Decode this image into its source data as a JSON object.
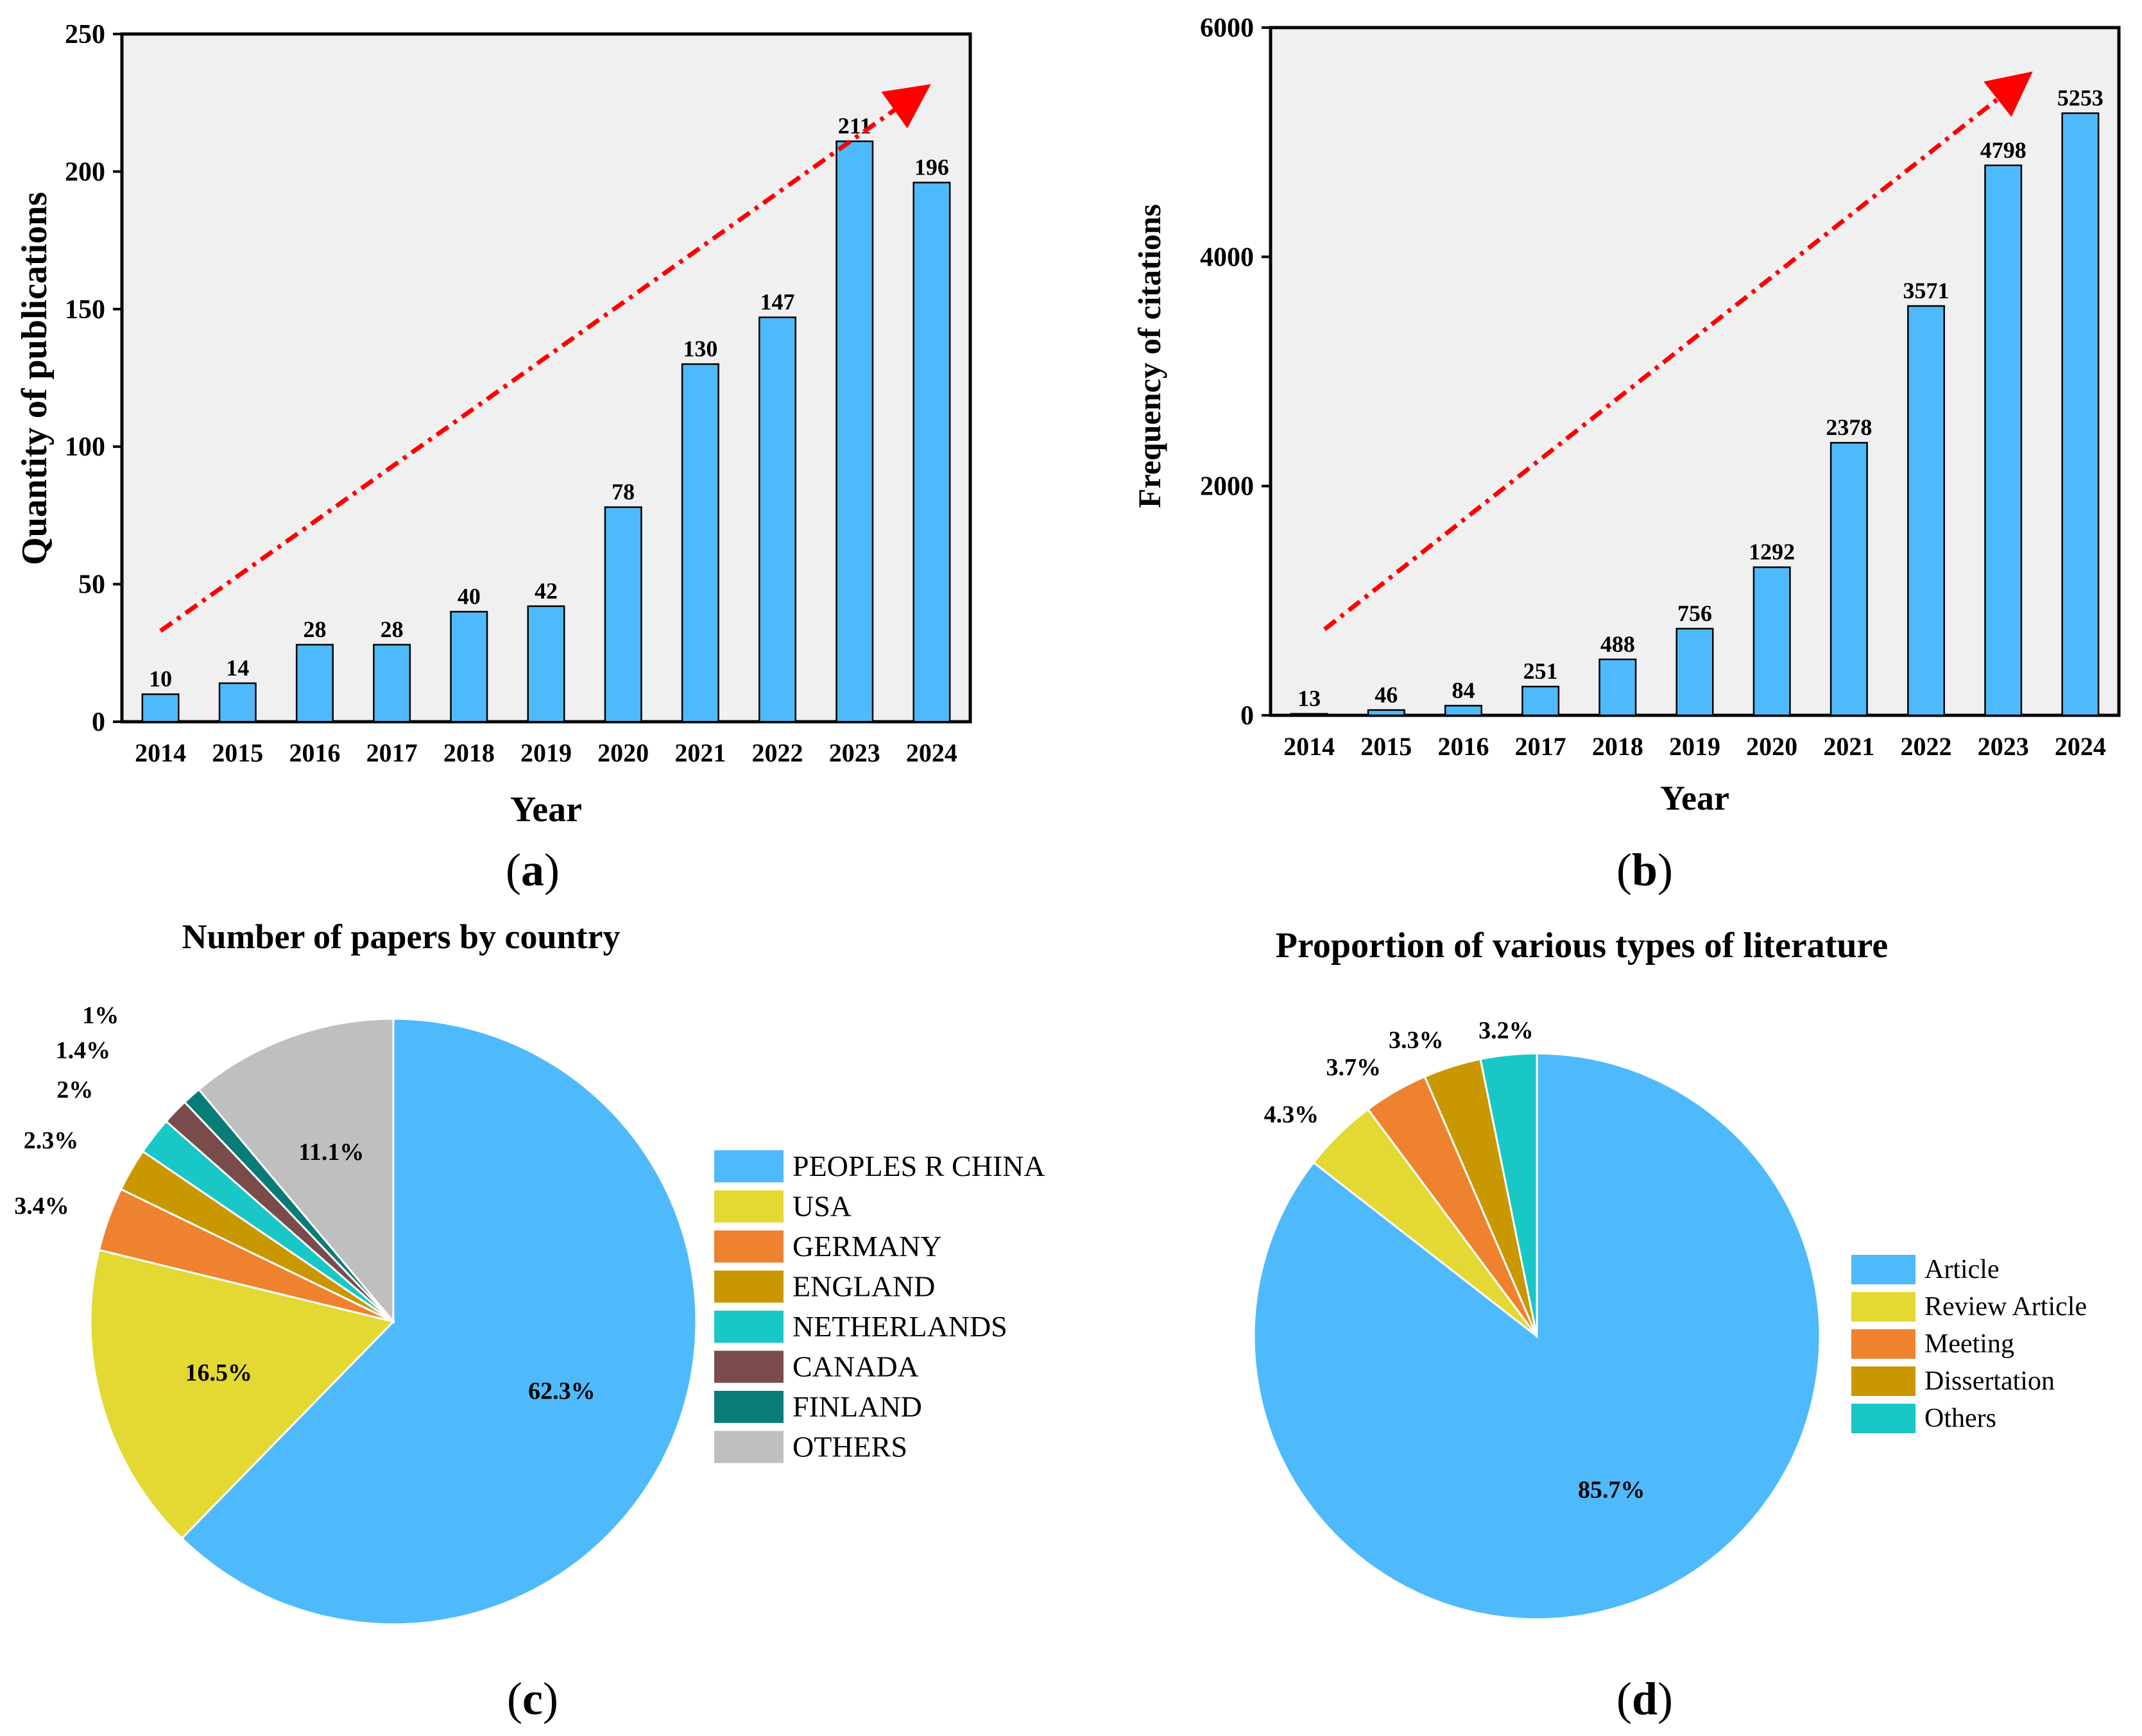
{
  "chart_data": [
    {
      "id": "a",
      "type": "bar",
      "caption": "a",
      "title": "",
      "xlabel": "Year",
      "ylabel": "Quantity of publications",
      "categories": [
        "2014",
        "2015",
        "2016",
        "2017",
        "2018",
        "2019",
        "2020",
        "2021",
        "2022",
        "2023",
        "2024"
      ],
      "values": [
        10,
        14,
        28,
        28,
        40,
        42,
        78,
        130,
        147,
        211,
        196
      ],
      "ylim": [
        0,
        250
      ],
      "yticks": [
        0,
        50,
        100,
        150,
        200,
        250
      ],
      "bar_color": "#4ebafc",
      "trend_arrow": {
        "color": "#ff0000",
        "style": "dash-dot",
        "from": [
          0,
          33
        ],
        "to": [
          9.8,
          228
        ]
      }
    },
    {
      "id": "b",
      "type": "bar",
      "caption": "b",
      "title": "",
      "xlabel": "Year",
      "ylabel": "Frequency of citations",
      "categories": [
        "2014",
        "2015",
        "2016",
        "2017",
        "2018",
        "2019",
        "2020",
        "2021",
        "2022",
        "2023",
        "2024"
      ],
      "values": [
        13,
        46,
        84,
        251,
        488,
        756,
        1292,
        2378,
        3571,
        4798,
        5253
      ],
      "ylim": [
        0,
        6000
      ],
      "yticks": [
        0,
        2000,
        4000,
        6000
      ],
      "bar_color": "#4ebafc",
      "trend_arrow": {
        "color": "#ff0000",
        "style": "dash-dot",
        "from": [
          0.2,
          750
        ],
        "to": [
          9.2,
          5520
        ]
      }
    },
    {
      "id": "c",
      "type": "pie",
      "caption": "c",
      "title": "Number of papers by country",
      "labels": [
        "PEOPLES R CHINA",
        "USA",
        "GERMANY",
        "ENGLAND",
        "NETHERLANDS",
        "CANADA",
        "FINLAND",
        "OTHERS"
      ],
      "values": [
        62.3,
        16.5,
        3.4,
        2.3,
        2,
        1.4,
        1,
        11.1
      ],
      "value_labels": [
        "62.3%",
        "16.5%",
        "3.4%",
        "2.3%",
        "2%",
        "1.4%",
        "1%",
        "11.1%"
      ],
      "colors": [
        "#4ebafc",
        "#e3d932",
        "#ee822f",
        "#c99800",
        "#19c7c7",
        "#7a4b4b",
        "#0a7c78",
        "#bfbfbf"
      ],
      "start_angle_deg": 0,
      "direction": "clockwise"
    },
    {
      "id": "d",
      "type": "pie",
      "caption": "d",
      "title": "Proportion of various types of literature",
      "labels": [
        "Article",
        "Review Article",
        "Meeting",
        "Dissertation",
        "Others"
      ],
      "values": [
        85.7,
        4.3,
        3.7,
        3.3,
        3.2
      ],
      "value_labels": [
        "85.7%",
        "4.3%",
        "3.7%",
        "3.3%",
        "3.2%"
      ],
      "colors": [
        "#4ebafc",
        "#e3d932",
        "#ee822f",
        "#c99800",
        "#19c7c7"
      ],
      "start_angle_deg": 0,
      "direction": "clockwise"
    }
  ]
}
